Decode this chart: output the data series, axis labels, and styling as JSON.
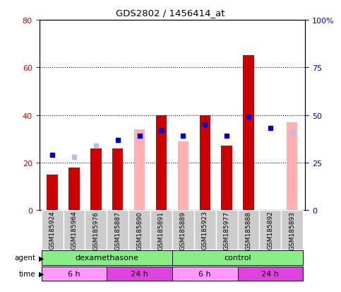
{
  "title": "GDS2802 / 1456414_at",
  "samples": [
    "GSM185924",
    "GSM185964",
    "GSM185976",
    "GSM185887",
    "GSM185890",
    "GSM185891",
    "GSM185889",
    "GSM185923",
    "GSM185977",
    "GSM185888",
    "GSM185892",
    "GSM185893"
  ],
  "count": [
    15,
    18,
    26,
    26,
    null,
    40,
    null,
    40,
    27,
    65,
    null,
    null
  ],
  "percentile_rank": [
    29,
    null,
    null,
    37,
    39,
    42,
    39,
    45,
    39,
    49,
    43,
    null
  ],
  "value_absent": [
    null,
    null,
    null,
    null,
    34,
    null,
    29,
    null,
    null,
    null,
    null,
    37
  ],
  "rank_absent": [
    null,
    28,
    34,
    null,
    null,
    null,
    null,
    null,
    null,
    null,
    null,
    41
  ],
  "left_ylim": [
    0,
    80
  ],
  "right_ylim": [
    0,
    100
  ],
  "left_yticks": [
    0,
    20,
    40,
    60,
    80
  ],
  "right_yticks": [
    0,
    25,
    50,
    75,
    100
  ],
  "right_yticklabels": [
    "0",
    "25",
    "50",
    "75",
    "100%"
  ],
  "left_yticklabels": [
    "0",
    "20",
    "40",
    "60",
    "80"
  ],
  "count_color": "#CC0000",
  "percentile_color": "#0000CC",
  "value_absent_color": "#FFB0B0",
  "rank_absent_color": "#BBBBEE",
  "left_label_color": "#CC0000",
  "right_label_color": "#0000CC",
  "agent_color": "#88EE88",
  "time_color_6h": "#FF99FF",
  "time_color_24h": "#DD44DD",
  "sample_bg_color": "#CCCCCC",
  "bar_width": 0.5
}
